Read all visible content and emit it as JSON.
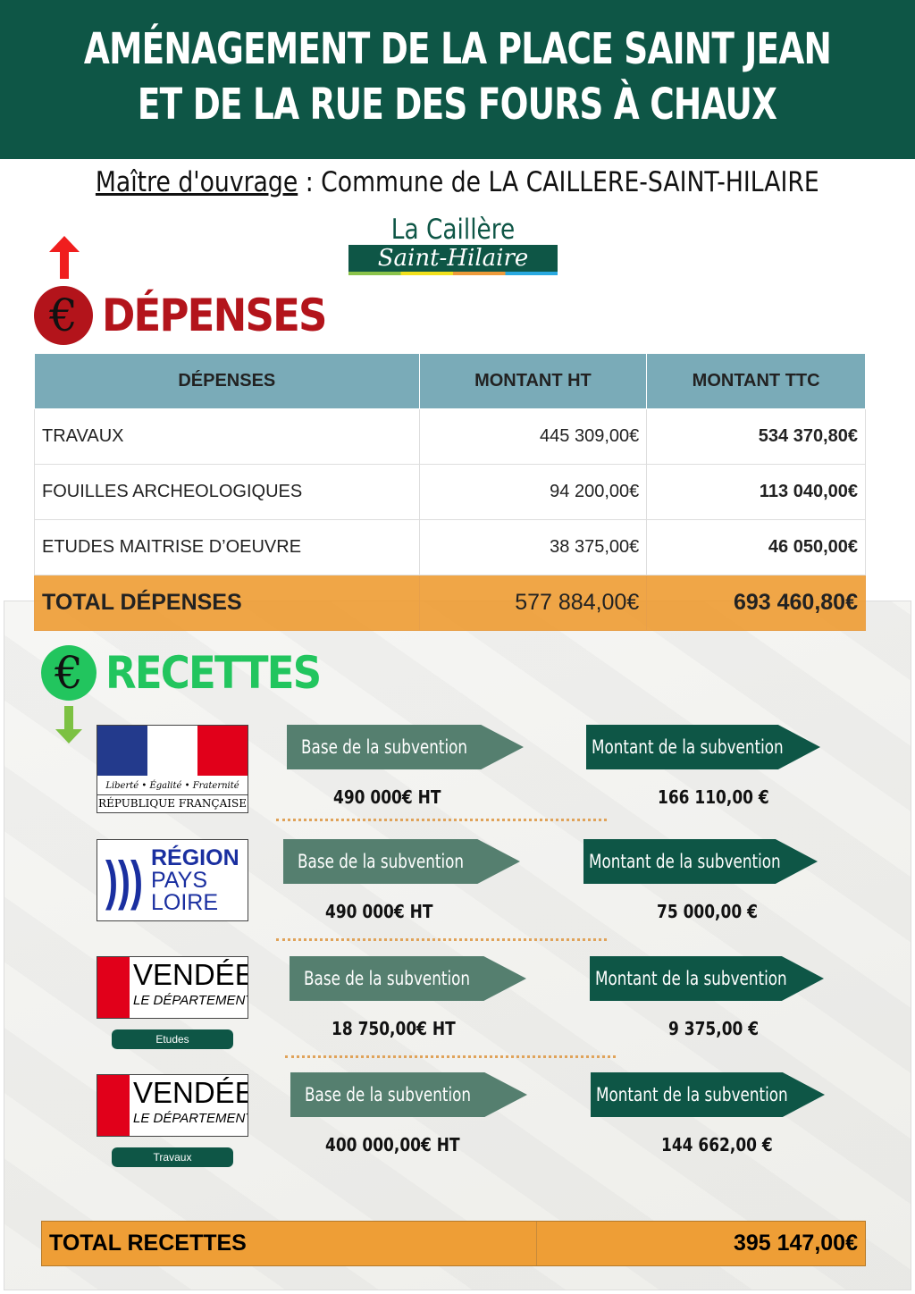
{
  "header": {
    "line1": "AMÉNAGEMENT DE LA PLACE SAINT JEAN",
    "line2": "ET DE LA RUE DES FOURS À CHAUX"
  },
  "owner": {
    "label": "Maître d'ouvrage",
    "text": " : Commune de LA  CAILLERE-SAINT-HILAIRE"
  },
  "logo": {
    "line1": "La Caillère",
    "line2": "Saint-Hilaire"
  },
  "depenses": {
    "title": "DÉPENSES",
    "icon": "euro-up-icon",
    "color": "#b3141b",
    "columns": [
      "DÉPENSES",
      "MONTANT HT",
      "MONTANT TTC"
    ],
    "rows": [
      [
        "TRAVAUX",
        "445 309,00€",
        "534 370,80€"
      ],
      [
        "FOUILLES ARCHEOLOGIQUES",
        "94 200,00€",
        "113 040,00€"
      ],
      [
        "ETUDES MAITRISE D’OEUVRE",
        "38 375,00€",
        "46 050,00€"
      ]
    ],
    "total": [
      "TOTAL DÉPENSES",
      "577 884,00€",
      "693 460,80€"
    ]
  },
  "recettes": {
    "title": "RECETTES",
    "icon": "euro-down-icon",
    "color": "#22c55e",
    "base_label": "Base de la subvention",
    "montant_label": "Montant de la subvention",
    "items": [
      {
        "org": "République Française",
        "org_line1": "Liberté • Égalité • Fraternité",
        "org_line2": "RÉPUBLIQUE FRANÇAISE",
        "base": "490 000€ HT",
        "montant": "166 110,00 €"
      },
      {
        "org": "Région Pays de la Loire",
        "org_line1": "RÉGION",
        "org_line2": "PAYS",
        "org_line3": "LOIRE",
        "base": "490 000€ HT",
        "montant": "75 000,00 €"
      },
      {
        "org": "Vendée",
        "org_line1": "VENDÉE",
        "org_line2": "LE DÉPARTEMENT",
        "tag": "Etudes",
        "base": "18 750,00€ HT",
        "montant": "9 375,00 €"
      },
      {
        "org": "Vendée",
        "org_line1": "VENDÉE",
        "org_line2": "LE DÉPARTEMENT",
        "tag": "Travaux",
        "base": "400 000,00€ HT",
        "montant": "144 662,00 €"
      }
    ],
    "total_label": "TOTAL RECETTES",
    "total_value": "395 147,00€"
  }
}
